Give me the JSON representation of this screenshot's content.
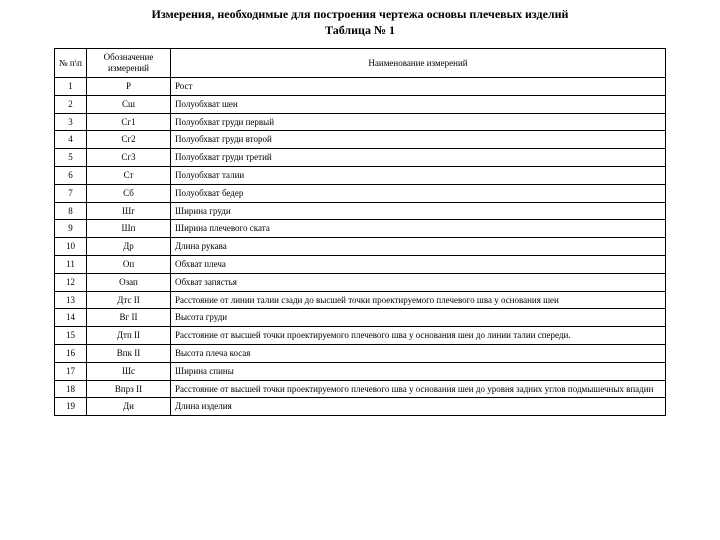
{
  "title_line1": "Измерения, необходимые для построения чертежа основы плечевых изделий",
  "title_line2": "Таблица № 1",
  "columns": {
    "num": "№ п\\п",
    "sym": "Обозначение измерений",
    "desc": "Наименование измерений"
  },
  "rows": [
    {
      "n": "1",
      "s": "Р",
      "d": "Рост"
    },
    {
      "n": "2",
      "s": "Сш",
      "d": "Полуобхват шеи"
    },
    {
      "n": "3",
      "s": "Сг1",
      "d": "Полуобхват груди первый"
    },
    {
      "n": "4",
      "s": "Сг2",
      "d": "Полуобхват груди второй"
    },
    {
      "n": "5",
      "s": "Сг3",
      "d": "Полуобхват груди третий"
    },
    {
      "n": "6",
      "s": "Ст",
      "d": "Полуобхват талии"
    },
    {
      "n": "7",
      "s": "Сб",
      "d": "Полуобхват бедер"
    },
    {
      "n": "8",
      "s": "Шг",
      "d": "Ширина груди"
    },
    {
      "n": "9",
      "s": "Шп",
      "d": "Ширина плечевого ската"
    },
    {
      "n": "10",
      "s": "Др",
      "d": "Длина рукава"
    },
    {
      "n": "11",
      "s": "Оп",
      "d": "Обхват плеча"
    },
    {
      "n": "12",
      "s": "Озап",
      "d": "Обхват запястья"
    },
    {
      "n": "13",
      "s": "Дтс II",
      "d": "Расстояние от линии талии сзади до высшей точки проектируемого плечевого шва у основания шеи"
    },
    {
      "n": "14",
      "s": "Вг II",
      "d": "Высота груди"
    },
    {
      "n": "15",
      "s": "Дтп II",
      "d": "Расстояние от высшей точки проектируемого плечевого шва у основания шеи до линии талии спереди."
    },
    {
      "n": "16",
      "s": "Впк II",
      "d": "Высота плеча косая"
    },
    {
      "n": "17",
      "s": "Шс",
      "d": "Ширина спины"
    },
    {
      "n": "18",
      "s": "Впрз II",
      "d": "Расстояние от высшей точки проектируемого плечевого шва у основания шеи до уровня задних углов подмышечных впадин"
    },
    {
      "n": "19",
      "s": "Ди",
      "d": "Длина изделия"
    }
  ]
}
